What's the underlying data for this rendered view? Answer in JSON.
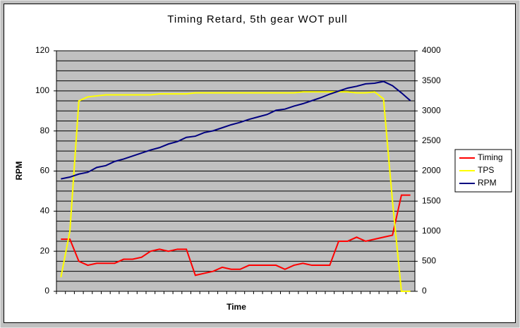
{
  "chart_data": {
    "type": "line",
    "title": "Timing Retard, 5th gear WOT pull",
    "x_label": "Time",
    "y_label": "RPM",
    "categories": [
      null,
      null,
      null,
      null,
      null,
      null,
      null,
      null,
      null,
      null,
      null,
      null,
      null,
      null,
      null,
      null,
      null,
      null,
      null,
      null,
      null,
      null,
      null,
      null,
      null,
      null,
      null,
      null,
      null,
      null,
      null,
      null,
      null,
      null,
      null,
      null,
      null,
      null,
      null,
      null
    ],
    "series": [
      {
        "name": "Timing",
        "color": "#ff0000",
        "axis": "y",
        "values": [
          26,
          26,
          15,
          13,
          14,
          14,
          14,
          16,
          16,
          17,
          20,
          21,
          20,
          21,
          21,
          8,
          9,
          10,
          12,
          11,
          11,
          13,
          13,
          13,
          13,
          11,
          13,
          14,
          13,
          13,
          13,
          25,
          25,
          27,
          25,
          26,
          27,
          28,
          48,
          48
        ]
      },
      {
        "name": "TPS",
        "color": "#ffff00",
        "axis": "y",
        "values": [
          7,
          30,
          95,
          97,
          97.5,
          98,
          98,
          98,
          98,
          98,
          98,
          98.5,
          98.5,
          98.5,
          98.5,
          99,
          99,
          99,
          99,
          99,
          99,
          99,
          99,
          99,
          99,
          99,
          99,
          99.5,
          99.5,
          99.5,
          99.5,
          99.5,
          99.5,
          99,
          99,
          99.5,
          96,
          45,
          0,
          0
        ]
      },
      {
        "name": "RPM",
        "color": "#000080",
        "axis": "y2",
        "values": [
          1870,
          1900,
          1950,
          1980,
          2060,
          2090,
          2160,
          2200,
          2250,
          2300,
          2350,
          2390,
          2450,
          2490,
          2560,
          2580,
          2640,
          2670,
          2720,
          2770,
          2810,
          2860,
          2900,
          2940,
          3010,
          3030,
          3080,
          3120,
          3170,
          3220,
          3280,
          3330,
          3380,
          3410,
          3450,
          3460,
          3490,
          3420,
          3300,
          3170
        ]
      }
    ],
    "ylim": [
      0,
      120
    ],
    "yticks": [
      0,
      20,
      40,
      60,
      80,
      100,
      120
    ],
    "y2lim": [
      0,
      4000
    ],
    "y2ticks": [
      0,
      500,
      1000,
      1500,
      2000,
      2500,
      3000,
      3500,
      4000
    ],
    "ygrid": [
      0,
      5,
      10,
      15,
      20,
      25,
      30,
      35,
      40,
      45,
      50,
      55,
      60,
      65,
      70,
      75,
      80,
      85,
      90,
      95,
      100,
      105,
      110,
      115,
      120
    ],
    "plot_color": "#c0c0c0",
    "legend": "right"
  }
}
